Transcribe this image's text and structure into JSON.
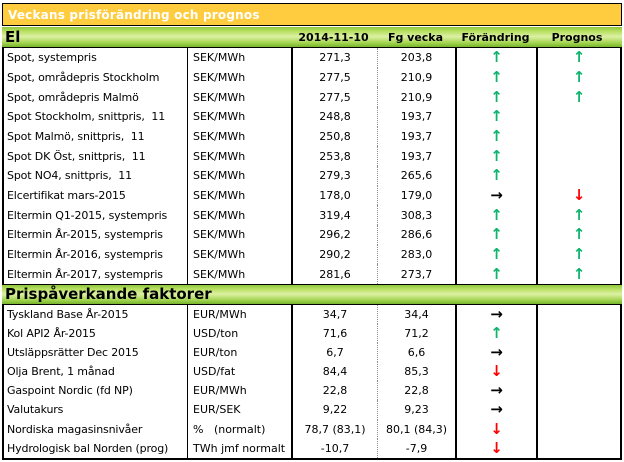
{
  "title_bar": {
    "text": "Veckans prisförändring och prognos",
    "bg": "#FECC3E",
    "text_color": "#FFFFFF"
  },
  "columns": {
    "date": "2014-11-10",
    "prev": "Fg vecka",
    "change": "Förändring",
    "forecast": "Prognos"
  },
  "arrow_colors": {
    "up": "#0CB46C",
    "down": "#FF0000",
    "right": "#000000"
  },
  "sections": [
    {
      "header": "El",
      "rows": [
        {
          "label": "Spot, systempris",
          "unit": "SEK/MWh",
          "current": "271,3",
          "previous": "203,8",
          "change": "up",
          "forecast": "up"
        },
        {
          "label": "Spot, områdepris Stockholm",
          "unit": "SEK/MWh",
          "current": "277,5",
          "previous": "210,9",
          "change": "up",
          "forecast": "up"
        },
        {
          "label": "Spot, områdepris Malmö",
          "unit": "SEK/MWh",
          "current": "277,5",
          "previous": "210,9",
          "change": "up",
          "forecast": "up"
        },
        {
          "label": "Spot Stockholm, snittpris,  11",
          "unit": "SEK/MWh",
          "current": "248,8",
          "previous": "193,7",
          "change": "up",
          "forecast": ""
        },
        {
          "label": "Spot Malmö, snittpris,  11",
          "unit": "SEK/MWh",
          "current": "250,8",
          "previous": "193,7",
          "change": "up",
          "forecast": ""
        },
        {
          "label": "Spot DK Öst, snittpris,  11",
          "unit": "SEK/MWh",
          "current": "253,8",
          "previous": "193,7",
          "change": "up",
          "forecast": ""
        },
        {
          "label": "Spot NO4, snittpris,  11",
          "unit": "SEK/MWh",
          "current": "279,3",
          "previous": "265,6",
          "change": "up",
          "forecast": ""
        },
        {
          "label": "Elcertifikat mars-2015",
          "unit": "SEK/MWh",
          "current": "178,0",
          "previous": "179,0",
          "change": "right",
          "forecast": "down"
        },
        {
          "label": "Eltermin Q1-2015, systempris",
          "unit": "SEK/MWh",
          "current": "319,4",
          "previous": "308,3",
          "change": "up",
          "forecast": "up"
        },
        {
          "label": "Eltermin År-2015, systempris",
          "unit": "SEK/MWh",
          "current": "296,2",
          "previous": "286,6",
          "change": "up",
          "forecast": "up"
        },
        {
          "label": "Eltermin År-2016, systempris",
          "unit": "SEK/MWh",
          "current": "290,2",
          "previous": "283,0",
          "change": "up",
          "forecast": "up"
        },
        {
          "label": "Eltermin År-2017, systempris",
          "unit": "SEK/MWh",
          "current": "281,6",
          "previous": "273,7",
          "change": "up",
          "forecast": "up"
        }
      ]
    },
    {
      "header": "Prispåverkande faktorer",
      "rows": [
        {
          "label": "Tyskland Base År-2015",
          "unit": "EUR/MWh",
          "current": "34,7",
          "previous": "34,4",
          "change": "right",
          "forecast": ""
        },
        {
          "label": "Kol API2 År-2015",
          "unit": "USD/ton",
          "current": "71,6",
          "previous": "71,2",
          "change": "up",
          "forecast": ""
        },
        {
          "label": "Utsläppsrätter Dec 2015",
          "unit": "EUR/ton",
          "current": "6,7",
          "previous": "6,6",
          "change": "right",
          "forecast": ""
        },
        {
          "label": "Olja Brent, 1 månad",
          "unit": "USD/fat",
          "current": "84,4",
          "previous": "85,3",
          "change": "down",
          "forecast": ""
        },
        {
          "label": "Gaspoint Nordic (fd NP)",
          "unit": "EUR/MWh",
          "current": "22,8",
          "previous": "22,8",
          "change": "right",
          "forecast": ""
        },
        {
          "label": "Valutakurs",
          "unit": "EUR/SEK",
          "current": "9,22",
          "previous": "9,23",
          "change": "right",
          "forecast": ""
        },
        {
          "label": "Nordiska magasinsnivåer",
          "unit": "%   (normalt)",
          "current": "78,7 (83,1)",
          "previous": "80,1 (84,3)",
          "change": "down",
          "forecast": ""
        },
        {
          "label": "Hydrologisk bal Norden (prog)",
          "unit": "TWh jmf normalt",
          "current": "-10,7",
          "previous": "-7,9",
          "change": "down",
          "forecast": ""
        }
      ]
    }
  ]
}
